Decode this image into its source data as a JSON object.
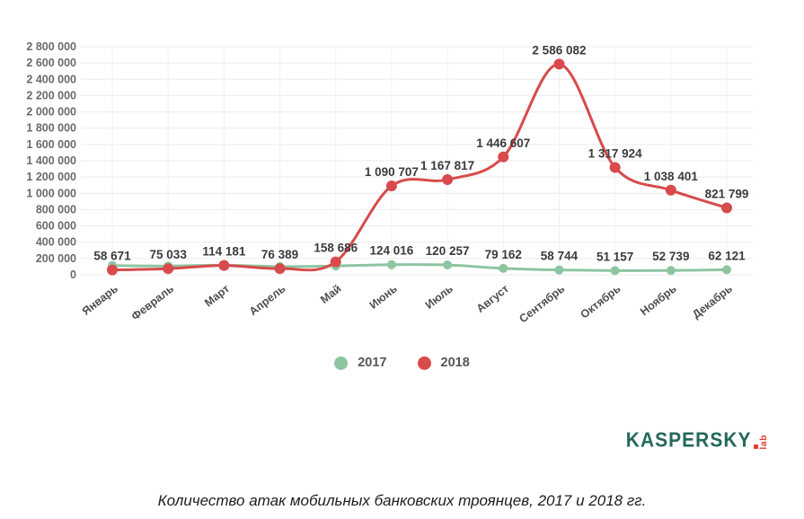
{
  "chart_data": {
    "type": "line",
    "title": "",
    "xlabel": "",
    "ylabel": "",
    "categories": [
      "Январь",
      "Февраль",
      "Март",
      "Апрель",
      "Май",
      "Июнь",
      "Июль",
      "Август",
      "Сентябрь",
      "Октябрь",
      "Ноябрь",
      "Декабрь"
    ],
    "series": [
      {
        "name": "2017",
        "color": "#8dc5a1",
        "values": [
          113000,
          108000,
          117000,
          100000,
          108000,
          124016,
          120257,
          79162,
          58744,
          51157,
          52739,
          62121
        ],
        "data_labels": [
          null,
          null,
          null,
          null,
          null,
          "124 016",
          "120 257",
          "79 162",
          "58 744",
          "51 157",
          "52 739",
          "62 121"
        ]
      },
      {
        "name": "2018",
        "color": "#d84a4b",
        "values": [
          58671,
          75033,
          114181,
          76389,
          158686,
          1090707,
          1167817,
          1446607,
          2586082,
          1317924,
          1038401,
          821799
        ],
        "data_labels": [
          "58 671",
          "75 033",
          "114 181",
          "76 389",
          "158 686",
          "1 090 707",
          "1 167 817",
          "1 446 607",
          "2 586 082",
          "1 317 924",
          "1 038 401",
          "821 799"
        ]
      }
    ],
    "ylim": [
      0,
      2800000
    ],
    "y_step": 200000,
    "y_tick_labels": [
      "0",
      "200 000",
      "400 000",
      "600 000",
      "800 000",
      "1 000 000",
      "1 200 000",
      "1 400 000",
      "1 600 000",
      "1 800 000",
      "2 000 000",
      "2 200 000",
      "2 400 000",
      "2 600 000",
      "2 800 000"
    ],
    "grid": true,
    "legend_position": "bottom"
  },
  "logo": {
    "brand": "KASPERSKY",
    "sub": "lab",
    "brand_color": "#26695a",
    "accent_color": "#e23d30"
  },
  "caption": "Количество атак мобильных банковских троянцев, 2017 и 2018 гг."
}
